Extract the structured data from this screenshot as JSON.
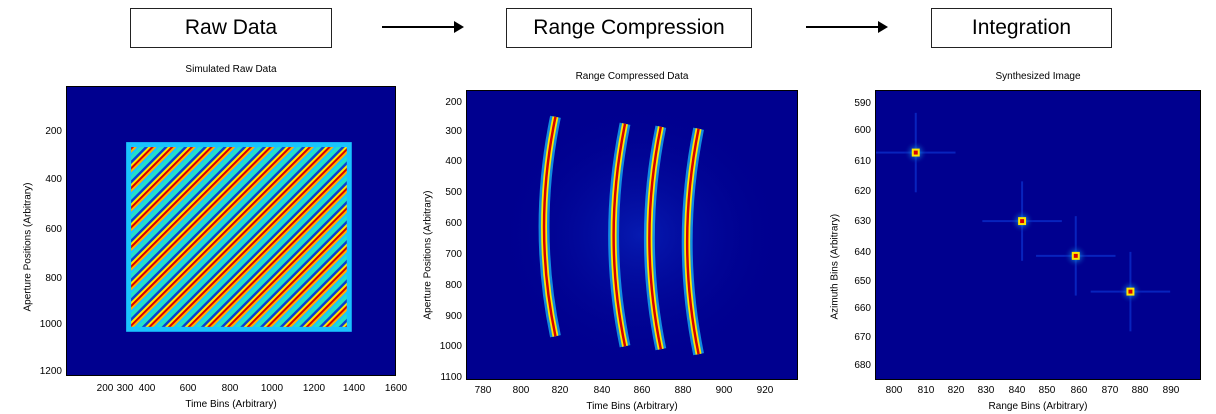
{
  "stages": {
    "raw": "Raw Data",
    "range": "Range Compression",
    "integration": "Integration"
  },
  "panels": [
    {
      "title": "Simulated Raw Data",
      "xlabel": "Time Bins (Arbitrary)",
      "ylabel": "Aperture Positions (Arbitrary)",
      "xticks": [
        "200",
        "300",
        "400",
        "600",
        "800",
        "1000",
        "1200",
        "1400",
        "1600"
      ],
      "yticks": [
        "200",
        "400",
        "600",
        "800",
        "1000",
        "1200"
      ]
    },
    {
      "title": "Range Compressed Data",
      "xlabel": "Time Bins (Arbitrary)",
      "ylabel": "Aperture Positions (Arbitrary)",
      "xticks": [
        "780",
        "800",
        "820",
        "840",
        "860",
        "880",
        "900",
        "920"
      ],
      "yticks": [
        "200",
        "300",
        "400",
        "500",
        "600",
        "700",
        "800",
        "900",
        "1000",
        "1100"
      ]
    },
    {
      "title": "Synthesized Image",
      "xlabel": "Range Bins (Arbitrary)",
      "ylabel": "Azimuth Bins (Arbitrary)",
      "xticks": [
        "800",
        "810",
        "820",
        "830",
        "840",
        "850",
        "860",
        "870",
        "880",
        "890"
      ],
      "yticks": [
        "590",
        "600",
        "610",
        "620",
        "630",
        "640",
        "650",
        "660",
        "670",
        "680"
      ]
    }
  ],
  "colors": {
    "background": "#00008f",
    "arc_red": "#d40000",
    "arc_yellow": "#ffe800",
    "stripe_cyan": "#19c4ff"
  }
}
